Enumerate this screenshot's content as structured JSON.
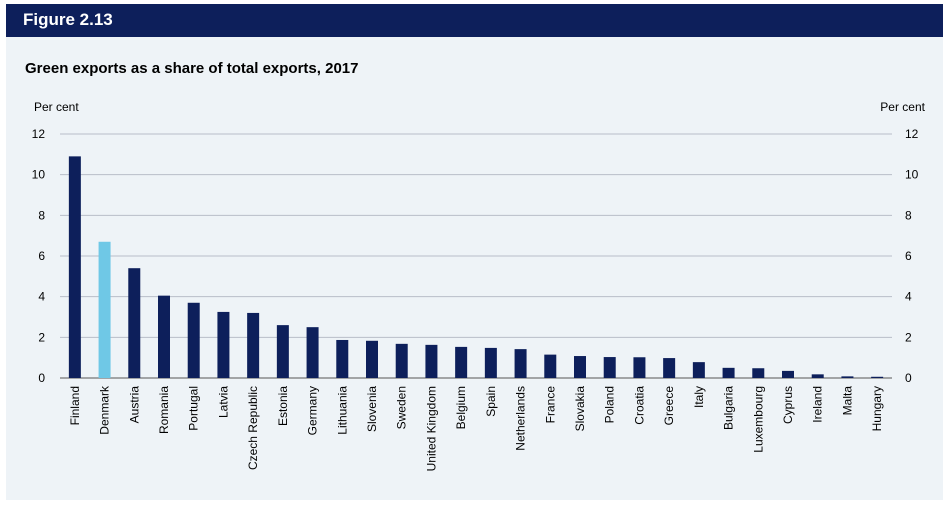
{
  "header": {
    "figure_label": "Figure 2.13"
  },
  "chart_data": {
    "type": "bar",
    "title": "Green exports as a share of total exports, 2017",
    "ylabel_left": "Per cent",
    "ylabel_right": "Per cent",
    "ylim": [
      0,
      12
    ],
    "yticks": [
      0,
      2,
      4,
      6,
      8,
      10,
      12
    ],
    "grid": true,
    "legend": "none",
    "colors": {
      "default": "#0d1f5b",
      "highlight": "#6fc8e6",
      "grid": "#b8bec8"
    },
    "highlight_category": "Denmark",
    "categories": [
      "Finland",
      "Denmark",
      "Austria",
      "Romania",
      "Portugal",
      "Latvia",
      "Czech Republic",
      "Estonia",
      "Germany",
      "Lithuania",
      "Slovenia",
      "Sweden",
      "United Kingdom",
      "Belgium",
      "Spain",
      "Netherlands",
      "France",
      "Slovakia",
      "Poland",
      "Croatia",
      "Greece",
      "Italy",
      "Bulgaria",
      "Luxembourg",
      "Cyprus",
      "Ireland",
      "Malta",
      "Hungary"
    ],
    "values": [
      10.9,
      6.7,
      5.4,
      4.05,
      3.7,
      3.25,
      3.2,
      2.6,
      2.5,
      1.87,
      1.83,
      1.68,
      1.63,
      1.53,
      1.48,
      1.42,
      1.15,
      1.08,
      1.03,
      1.02,
      0.98,
      0.78,
      0.5,
      0.48,
      0.35,
      0.18,
      0.08,
      0.06
    ]
  }
}
